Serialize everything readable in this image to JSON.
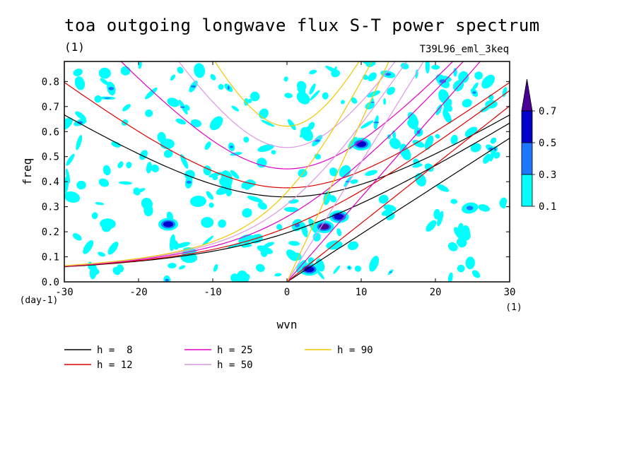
{
  "header": {
    "title": "toa outgoing longwave flux S-T power spectrum",
    "unit": "(1)",
    "run_id": "T39L96_eml_3keq"
  },
  "chart_data": {
    "type": "contour",
    "xlabel": "wvn",
    "ylabel": "freq",
    "x_unit": "(1)",
    "y_unit": "(day-1)",
    "xlim": [
      -30,
      30
    ],
    "ylim": [
      0,
      0.88
    ],
    "x_ticks": [
      -30,
      -20,
      -10,
      0,
      10,
      20,
      30
    ],
    "x_tick_labels": [
      "-30",
      "-20",
      "-10",
      "0",
      "10",
      "20",
      "30"
    ],
    "y_ticks": [
      0,
      0.1,
      0.2,
      0.3,
      0.4,
      0.5,
      0.6,
      0.7,
      0.8
    ],
    "y_tick_labels": [
      "0.0",
      "0.1",
      "0.2",
      "0.3",
      "0.4",
      "0.5",
      "0.6",
      "0.7",
      "0.8"
    ],
    "colorbar": {
      "levels": [
        0.1,
        0.3,
        0.5,
        0.7
      ],
      "level_labels": [
        "0.1",
        "0.3",
        "0.5",
        "0.7"
      ],
      "colors": [
        "#00ffff",
        "#1e78ff",
        "#0000c8",
        "#4a0096"
      ]
    },
    "dispersion_curves": [
      {
        "label": "h =  8",
        "h": 8,
        "color": "#000000"
      },
      {
        "label": "h = 12",
        "h": 12,
        "color": "#e00000"
      },
      {
        "label": "h = 25",
        "h": 25,
        "color": "#e000c8"
      },
      {
        "label": "h = 50",
        "h": 50,
        "color": "#dc96e6"
      },
      {
        "label": "h = 90",
        "h": 90,
        "color": "#f0c800"
      }
    ],
    "features": [
      {
        "name": "dark patch",
        "wvn": 5,
        "freq": 0.22,
        "level": 0.7
      },
      {
        "name": "dark patch",
        "wvn": 7,
        "freq": 0.26,
        "level": 0.5
      },
      {
        "name": "dark patch",
        "wvn": 3,
        "freq": 0.05,
        "level": 0.5
      },
      {
        "name": "dark patch",
        "wvn": 10,
        "freq": 0.55,
        "level": 0.5
      },
      {
        "name": "dark patch",
        "wvn": -16,
        "freq": 0.23,
        "level": 0.5
      }
    ]
  }
}
